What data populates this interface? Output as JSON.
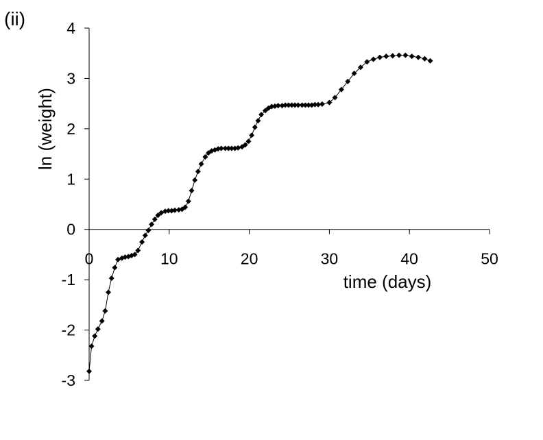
{
  "panel_label": "(ii)",
  "chart_data": {
    "type": "scatter",
    "title": "",
    "xlabel": "time (days)",
    "ylabel": "ln (weight)",
    "xlim": [
      0,
      50
    ],
    "ylim": [
      -3,
      4
    ],
    "xticks": [
      0,
      10,
      20,
      30,
      40,
      50
    ],
    "yticks": [
      -3,
      -2,
      -1,
      0,
      1,
      2,
      3,
      4
    ],
    "grid": false,
    "legend": "none",
    "marker": "diamond",
    "line": true,
    "series": [
      {
        "x": [
          0,
          0.3,
          0.7,
          1.1,
          1.6,
          2,
          2.4,
          2.8,
          3.2,
          3.6,
          4.1,
          4.5,
          4.9,
          5.3,
          5.7,
          6.1,
          6.6,
          7,
          7.4,
          7.8,
          8.2,
          8.6,
          9,
          9.5,
          9.9,
          10.3,
          10.7,
          11.2,
          11.6,
          12,
          12.4,
          12.8,
          13.2,
          13.6,
          14,
          14.5,
          14.9,
          15.3,
          15.7,
          16.1,
          16.5,
          17,
          17.4,
          17.8,
          18.2,
          18.6,
          19.1,
          19.5,
          19.9,
          20.3,
          20.7,
          21.1,
          21.5,
          22,
          22.4,
          22.8,
          23.2,
          23.6,
          24.1,
          24.5,
          24.9,
          25.3,
          25.7,
          26.1,
          26.6,
          27,
          27.4,
          27.8,
          28.2,
          28.6,
          29.1,
          30,
          30.7,
          31.5,
          32.3,
          33.1,
          33.9,
          34.7,
          35.5,
          36.3,
          37.1,
          37.9,
          38.7,
          39.5,
          40.3,
          41.1,
          41.9,
          42.6
        ],
        "y": [
          -2.82,
          -2.32,
          -2.12,
          -1.98,
          -1.82,
          -1.62,
          -1.25,
          -0.97,
          -0.76,
          -0.6,
          -0.57,
          -0.55,
          -0.54,
          -0.52,
          -0.5,
          -0.42,
          -0.25,
          -0.12,
          -0.02,
          0.1,
          0.2,
          0.28,
          0.33,
          0.36,
          0.37,
          0.37,
          0.38,
          0.39,
          0.4,
          0.44,
          0.56,
          0.77,
          0.98,
          1.15,
          1.3,
          1.44,
          1.52,
          1.56,
          1.58,
          1.6,
          1.61,
          1.61,
          1.61,
          1.61,
          1.61,
          1.62,
          1.64,
          1.68,
          1.75,
          1.87,
          2.03,
          2.16,
          2.28,
          2.36,
          2.41,
          2.44,
          2.45,
          2.46,
          2.46,
          2.47,
          2.47,
          2.47,
          2.47,
          2.47,
          2.47,
          2.47,
          2.47,
          2.47,
          2.48,
          2.48,
          2.49,
          2.52,
          2.62,
          2.78,
          2.94,
          3.1,
          3.22,
          3.33,
          3.38,
          3.42,
          3.44,
          3.45,
          3.46,
          3.46,
          3.44,
          3.42,
          3.39,
          3.35
        ]
      }
    ]
  }
}
